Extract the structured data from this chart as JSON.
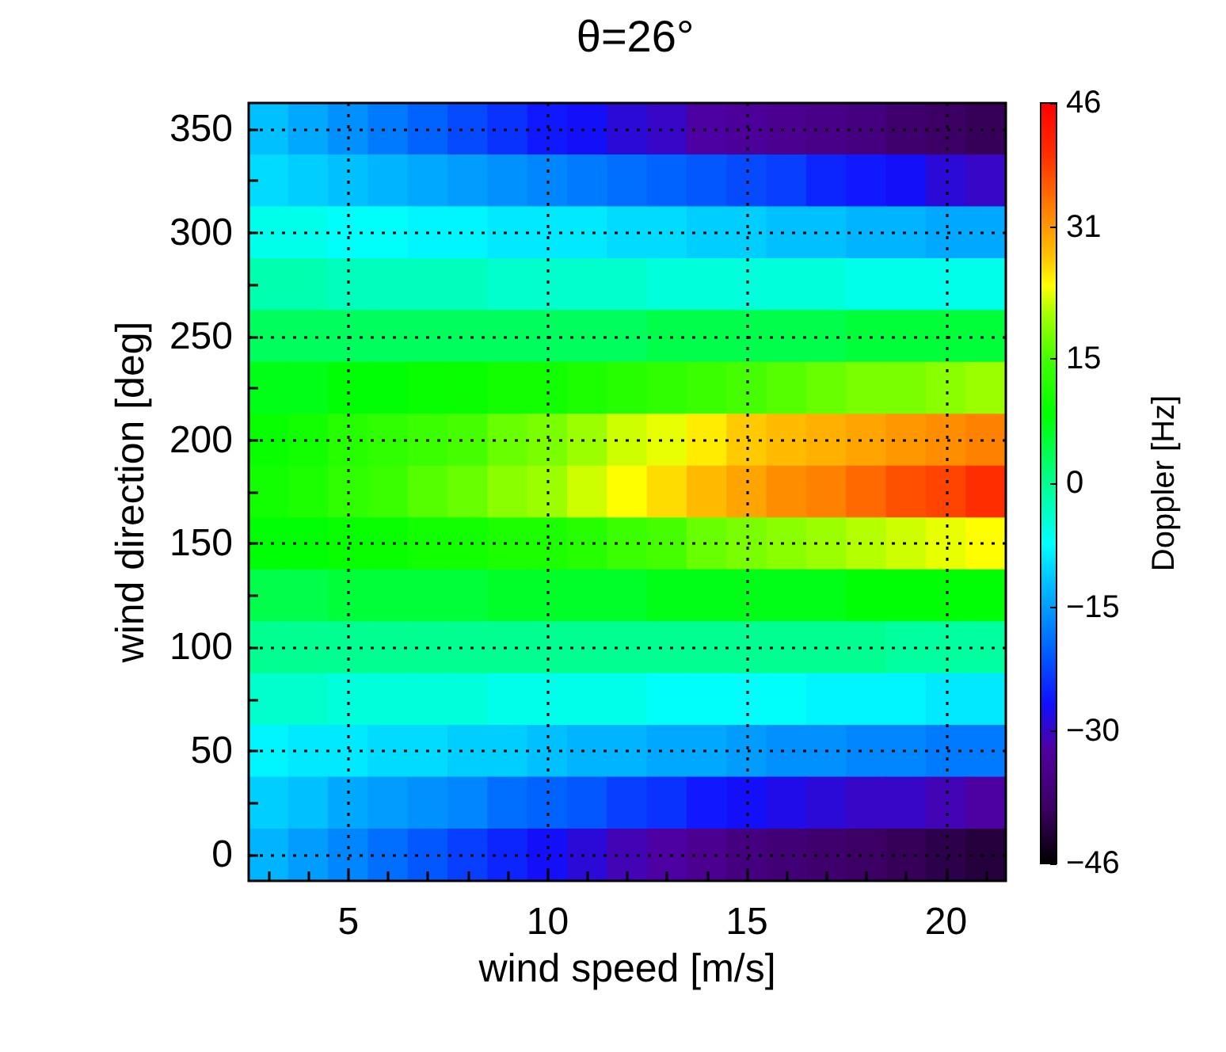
{
  "chart_data": {
    "type": "heatmap",
    "title": "θ=26°",
    "xlabel": "wind speed [m/s]",
    "ylabel": "wind direction [deg]",
    "clabel": "Doppler [Hz]",
    "categories": [
      null,
      null,
      "5",
      null,
      null,
      null,
      null,
      "10",
      null,
      null,
      null,
      null,
      "15",
      null,
      null,
      null,
      null,
      "20",
      null
    ],
    "y_categories": [
      "350",
      null,
      "300",
      null,
      "250",
      null,
      "200",
      null,
      "150",
      null,
      "100",
      null,
      "50",
      null,
      "0"
    ],
    "cells": [
      [
        -12,
        -14,
        -16,
        -18,
        -20,
        -22,
        -24,
        -26,
        -27,
        -29,
        -30,
        -32,
        -33,
        -34,
        -35,
        -36,
        -38,
        -39,
        -40
      ],
      [
        -10,
        -11,
        -12,
        -13,
        -14,
        -15,
        -16,
        -17,
        -18,
        -19,
        -20,
        -21,
        -22,
        -23,
        -25,
        -26,
        -27,
        -29,
        -30
      ],
      [
        -6,
        -6,
        -7,
        -7,
        -8,
        -8,
        -9,
        -9,
        -9,
        -10,
        -10,
        -11,
        -11,
        -12,
        -12,
        -13,
        -13,
        -14,
        -14
      ],
      [
        -2,
        -2,
        -3,
        -3,
        -3,
        -3,
        -4,
        -4,
        -4,
        -4,
        -5,
        -5,
        -5,
        -5,
        -5,
        -6,
        -6,
        -6,
        -6
      ],
      [
        3,
        3,
        3,
        3,
        3,
        3,
        3,
        3,
        3,
        3,
        4,
        4,
        4,
        4,
        4,
        5,
        5,
        5,
        5
      ],
      [
        7,
        7,
        8,
        8,
        9,
        9,
        10,
        10,
        11,
        12,
        13,
        14,
        15,
        16,
        17,
        18,
        18,
        19,
        20
      ],
      [
        9,
        10,
        12,
        13,
        14,
        15,
        17,
        18,
        20,
        22,
        23,
        25,
        27,
        28,
        29,
        30,
        31,
        32,
        33
      ],
      [
        10,
        11,
        13,
        14,
        16,
        17,
        19,
        20,
        22,
        24,
        26,
        28,
        30,
        32,
        33,
        35,
        37,
        38,
        40
      ],
      [
        8,
        8,
        9,
        9,
        10,
        10,
        11,
        11,
        12,
        14,
        15,
        17,
        18,
        19,
        20,
        21,
        22,
        23,
        24
      ],
      [
        4,
        4,
        5,
        5,
        5,
        5,
        6,
        6,
        6,
        6,
        7,
        7,
        7,
        7,
        7,
        8,
        8,
        8,
        8
      ],
      [
        0,
        0,
        0,
        0,
        0,
        0,
        0,
        0,
        0,
        0,
        0,
        0,
        0,
        0,
        0,
        0,
        -1,
        -1,
        -1
      ],
      [
        -4,
        -4,
        -5,
        -5,
        -5,
        -5,
        -6,
        -6,
        -6,
        -6,
        -7,
        -7,
        -7,
        -7,
        -8,
        -8,
        -8,
        -9,
        -9
      ],
      [
        -8,
        -9,
        -9,
        -10,
        -10,
        -11,
        -11,
        -12,
        -13,
        -13,
        -14,
        -14,
        -15,
        -16,
        -16,
        -17,
        -17,
        -18,
        -18
      ],
      [
        -11,
        -12,
        -14,
        -15,
        -16,
        -17,
        -19,
        -20,
        -21,
        -23,
        -24,
        -26,
        -27,
        -28,
        -29,
        -30,
        -30,
        -31,
        -32
      ],
      [
        -13,
        -15,
        -17,
        -19,
        -21,
        -23,
        -25,
        -27,
        -29,
        -31,
        -32,
        -34,
        -36,
        -37,
        -38,
        -39,
        -40,
        -41,
        -42
      ]
    ],
    "clim": [
      -46,
      46
    ],
    "cticks": [
      -46,
      -30,
      -15,
      0,
      15,
      31,
      46
    ],
    "grid": true
  }
}
